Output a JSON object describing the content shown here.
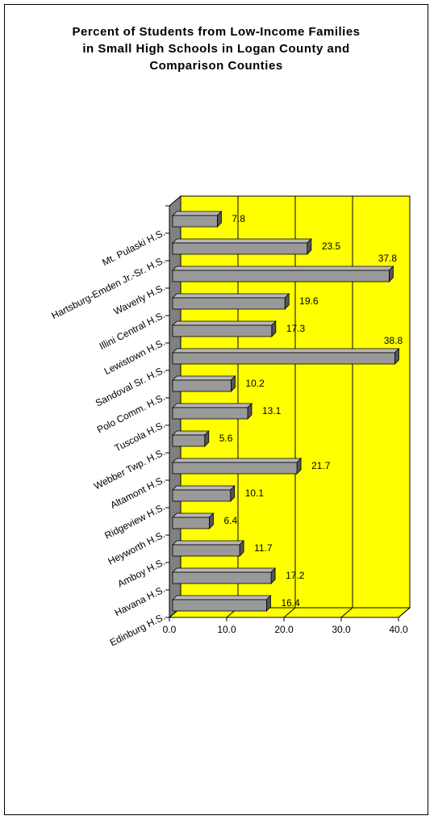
{
  "chart_data": {
    "type": "bar",
    "orientation": "horizontal",
    "title": [
      "Percent of Students from Low-Income Families",
      "in Small High Schools in Logan County and",
      "Comparison Counties"
    ],
    "categories": [
      "Mt. Pulaski H.S.",
      "Hartsburg-Emden Jr.-Sr. H.S.",
      "Waverly H.S.",
      "Illini Central H.S.",
      "Lewistown H.S.",
      "Sandoval Sr. H.S.",
      "Polo Comm. H.S.",
      "Tuscola H.S.",
      "Webber Twp. H.S.",
      "Altamont H.S.",
      "Ridgeview H.S.",
      "Heyworth H.S.",
      "Amboy H.S.",
      "Havana H.S.",
      "Edinburg H.S."
    ],
    "values": [
      7.8,
      23.5,
      37.8,
      19.6,
      17.3,
      38.8,
      10.2,
      13.1,
      5.6,
      21.7,
      10.1,
      6.4,
      11.7,
      17.2,
      16.4
    ],
    "color": "#999999",
    "wall_color": "#ffff00",
    "xlim": [
      0,
      40
    ],
    "xticks": [
      {
        "value": 0,
        "label": "0.0"
      },
      {
        "value": 10,
        "label": "10.0"
      },
      {
        "value": 20,
        "label": "20.0"
      },
      {
        "value": 30,
        "label": "30.0"
      },
      {
        "value": 40,
        "label": "40.0"
      }
    ],
    "grid": true
  }
}
